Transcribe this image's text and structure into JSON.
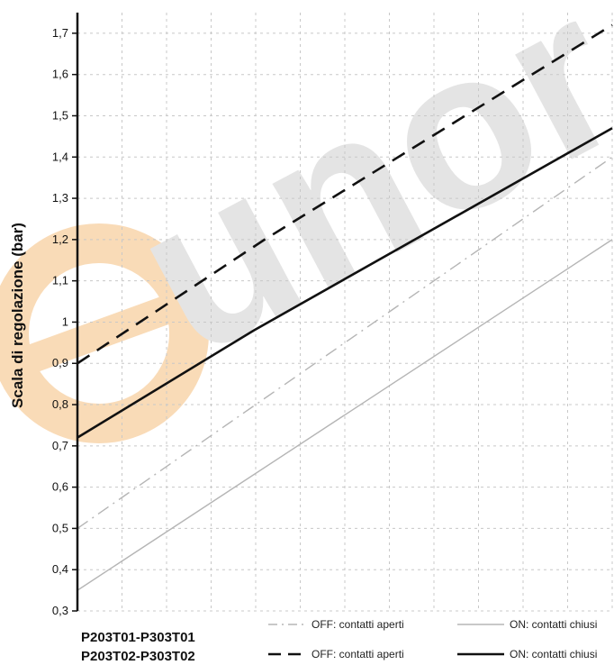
{
  "chart_data": {
    "type": "line",
    "ylabel": "Scala di regolazione (bar)",
    "xlabel": "",
    "ylim": [
      0.3,
      1.75
    ],
    "yticks": [
      "0,3",
      "0,4",
      "0,5",
      "0,6",
      "0,7",
      "0,8",
      "0,9",
      "1",
      "1,1",
      "1,2",
      "1,3",
      "1,4",
      "1,5",
      "1,6",
      "1,7"
    ],
    "x": [
      0,
      1
    ],
    "grid": true,
    "models": [
      "P203T01-P303T01",
      "P203T02-P303T02"
    ],
    "series": [
      {
        "name": "OFF: contatti aperti",
        "group": 0,
        "style": "dash-dot",
        "color": "#b5b5b5",
        "x": [
          0,
          1
        ],
        "y": [
          0.5,
          1.4
        ]
      },
      {
        "name": "ON: contatti chiusi",
        "group": 0,
        "style": "solid",
        "color": "#b5b5b5",
        "x": [
          0,
          1
        ],
        "y": [
          0.35,
          1.2
        ]
      },
      {
        "name": "OFF: contatti aperti",
        "group": 1,
        "style": "dashed",
        "color": "#111111",
        "x": [
          0,
          0.35,
          1
        ],
        "y": [
          0.9,
          1.2,
          1.72
        ]
      },
      {
        "name": "ON: contatti chiusi",
        "group": 1,
        "style": "solid",
        "color": "#111111",
        "x": [
          0,
          0.33,
          1
        ],
        "y": [
          0.72,
          0.98,
          1.47
        ]
      }
    ]
  },
  "watermark": {
    "text": "eunor",
    "accent": "#f5b878",
    "gray": "#d4d4d4"
  }
}
